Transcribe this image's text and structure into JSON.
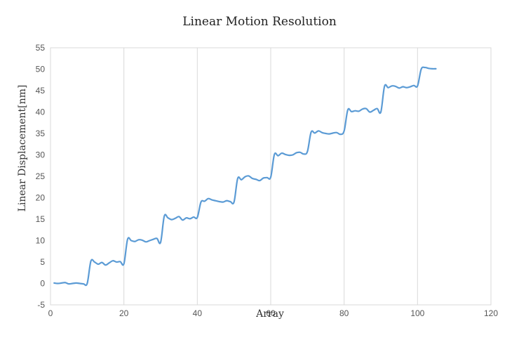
{
  "chart_data": {
    "type": "line",
    "title": "Linear Motion Resolution",
    "xlabel": "Array",
    "ylabel": "Linear Displacement[nm]",
    "xlim": [
      0,
      120
    ],
    "ylim": [
      -5,
      55
    ],
    "x_ticks": [
      "0",
      "20",
      "40",
      "60",
      "80",
      "100",
      "120"
    ],
    "y_ticks": [
      "-5",
      "0",
      "5",
      "10",
      "15",
      "20",
      "25",
      "30",
      "35",
      "40",
      "45",
      "50",
      "55"
    ],
    "grid": "vertical",
    "legend": "none",
    "series": [
      {
        "color": "#5b9bd5",
        "x": [
          1,
          2,
          3,
          4,
          5,
          6,
          7,
          8,
          9,
          10,
          11,
          12,
          13,
          14,
          15,
          16,
          17,
          18,
          19,
          20,
          21,
          22,
          23,
          24,
          25,
          26,
          27,
          28,
          29,
          30,
          31,
          32,
          33,
          34,
          35,
          36,
          37,
          38,
          39,
          40,
          41,
          42,
          43,
          44,
          45,
          46,
          47,
          48,
          49,
          50,
          51,
          52,
          53,
          54,
          55,
          56,
          57,
          58,
          59,
          60,
          61,
          62,
          63,
          64,
          65,
          66,
          67,
          68,
          69,
          70,
          71,
          72,
          73,
          74,
          75,
          76,
          77,
          78,
          79,
          80,
          81,
          82,
          83,
          84,
          85,
          86,
          87,
          88,
          89,
          90,
          91,
          92,
          93,
          94,
          95,
          96,
          97,
          98,
          99,
          100,
          101,
          102,
          103,
          104,
          105
        ],
        "y": [
          0.1,
          0,
          0.1,
          0.2,
          -0.1,
          0,
          0.1,
          0,
          -0.1,
          0,
          5.2,
          5.0,
          4.5,
          4.9,
          4.3,
          4.8,
          5.3,
          5.0,
          5.1,
          4.6,
          10.3,
          10.0,
          9.8,
          10.2,
          10.1,
          9.7,
          10.0,
          10.3,
          10.5,
          9.6,
          15.7,
          15.3,
          14.9,
          15.2,
          15.6,
          14.8,
          15.3,
          15.1,
          15.5,
          15.4,
          19.0,
          19.2,
          19.8,
          19.5,
          19.3,
          19.1,
          19.0,
          19.3,
          19.1,
          19.0,
          24.5,
          24.2,
          24.9,
          25.1,
          24.5,
          24.3,
          24.0,
          24.6,
          24.7,
          24.8,
          30.1,
          29.8,
          30.4,
          30.1,
          29.9,
          30.0,
          30.5,
          30.6,
          30.2,
          30.8,
          35.3,
          35.1,
          35.6,
          35.2,
          35.0,
          34.9,
          35.1,
          35.2,
          34.8,
          35.6,
          40.5,
          40.1,
          40.3,
          40.2,
          40.7,
          40.8,
          40.0,
          40.4,
          40.8,
          40.0,
          46.0,
          45.7,
          46.1,
          46.0,
          45.6,
          45.9,
          45.7,
          45.9,
          46.2,
          46.1,
          50.0,
          50.4,
          50.2,
          50.1,
          50.1
        ]
      }
    ]
  }
}
